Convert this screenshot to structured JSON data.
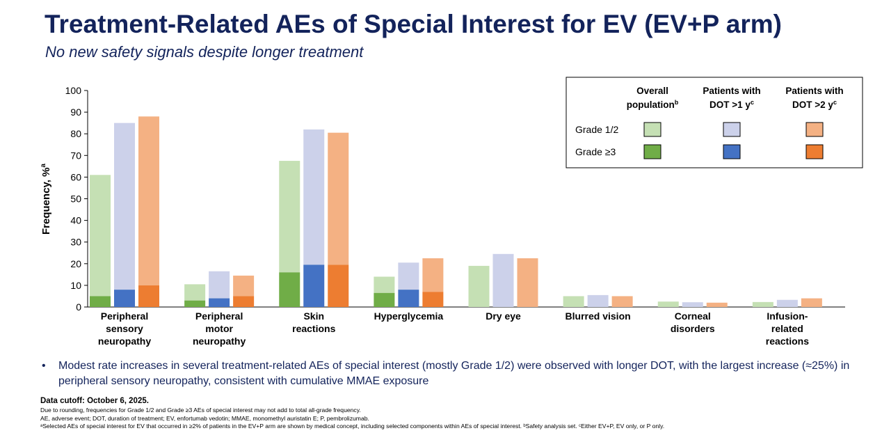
{
  "header": {
    "title": "Treatment-Related AEs of Special Interest for EV (EV+P arm)",
    "subtitle": "No new safety signals despite longer treatment"
  },
  "colors": {
    "overall_g12": "#c5e0b4",
    "overall_g3": "#70ad47",
    "dot1_g12": "#ccd1ea",
    "dot1_g3": "#4472c4",
    "dot2_g12": "#f4b183",
    "dot2_g3": "#ed7d31"
  },
  "chart_data": {
    "type": "bar",
    "stacked": true,
    "ylabel": "Frequency, %",
    "ylabel_sup": "a",
    "ylim": [
      0,
      100
    ],
    "yticks": [
      0,
      10,
      20,
      30,
      40,
      50,
      60,
      70,
      80,
      90,
      100
    ],
    "grid": false,
    "legend_placement": "top-right",
    "categories": [
      [
        "Peripheral",
        "sensory",
        "neuropathy"
      ],
      [
        "Peripheral",
        "motor",
        "neuropathy"
      ],
      [
        "Skin",
        "reactions"
      ],
      [
        "Hyperglycemia"
      ],
      [
        "Dry eye"
      ],
      [
        "Blurred vision"
      ],
      [
        "Corneal",
        "disorders"
      ],
      [
        "Infusion-",
        "related",
        "reactions"
      ]
    ],
    "series": [
      {
        "group": "overall",
        "grade_ge3": [
          5,
          3,
          16,
          6.5,
          0,
          0,
          0,
          0
        ],
        "all_grade": [
          61,
          10.5,
          67.5,
          14,
          19,
          5,
          2.5,
          2.3
        ]
      },
      {
        "group": "dot1",
        "grade_ge3": [
          8,
          4,
          19.5,
          8,
          0,
          0,
          0,
          0
        ],
        "all_grade": [
          85,
          16.5,
          82,
          20.5,
          24.5,
          5.5,
          2.2,
          3.3
        ]
      },
      {
        "group": "dot2",
        "grade_ge3": [
          10,
          5,
          19.5,
          7,
          0,
          0,
          0,
          0
        ],
        "all_grade": [
          88,
          14.5,
          80.5,
          22.5,
          22.5,
          5,
          2,
          4
        ]
      }
    ],
    "legend": {
      "col_headers": [
        {
          "line1": "Overall",
          "line2": "population",
          "sup": "b"
        },
        {
          "line1": "Patients with",
          "line2": "DOT >1 y",
          "sup": "c"
        },
        {
          "line1": "Patients with",
          "line2": "DOT >2 y",
          "sup": "c"
        }
      ],
      "row_labels": [
        "Grade 1/2",
        "Grade ≥3"
      ]
    }
  },
  "bullet": "Modest rate increases in several treatment-related AEs of special interest (mostly Grade 1/2) were observed with longer DOT, with the largest increase (≈25%) in peripheral sensory neuropathy, consistent with cumulative MMAE exposure",
  "footnotes": {
    "cutoff": "Data cutoff: October 6, 2025.",
    "lines": [
      "Due to rounding, frequencies for Grade 1/2 and Grade ≥3 AEs of special interest may not add to total all-grade frequency.",
      "AE, adverse event; DOT, duration of treatment; EV, enfortumab vedotin; MMAE, monomethyl auristatin E; P, pembrolizumab.",
      "ᵃSelected AEs of special interest for EV that occurred in ≥2% of patients in the EV+P arm are shown by medical concept, including selected components within AEs of special interest. ᵇSafety analysis set. ᶜEither EV+P, EV only, or P only."
    ]
  }
}
